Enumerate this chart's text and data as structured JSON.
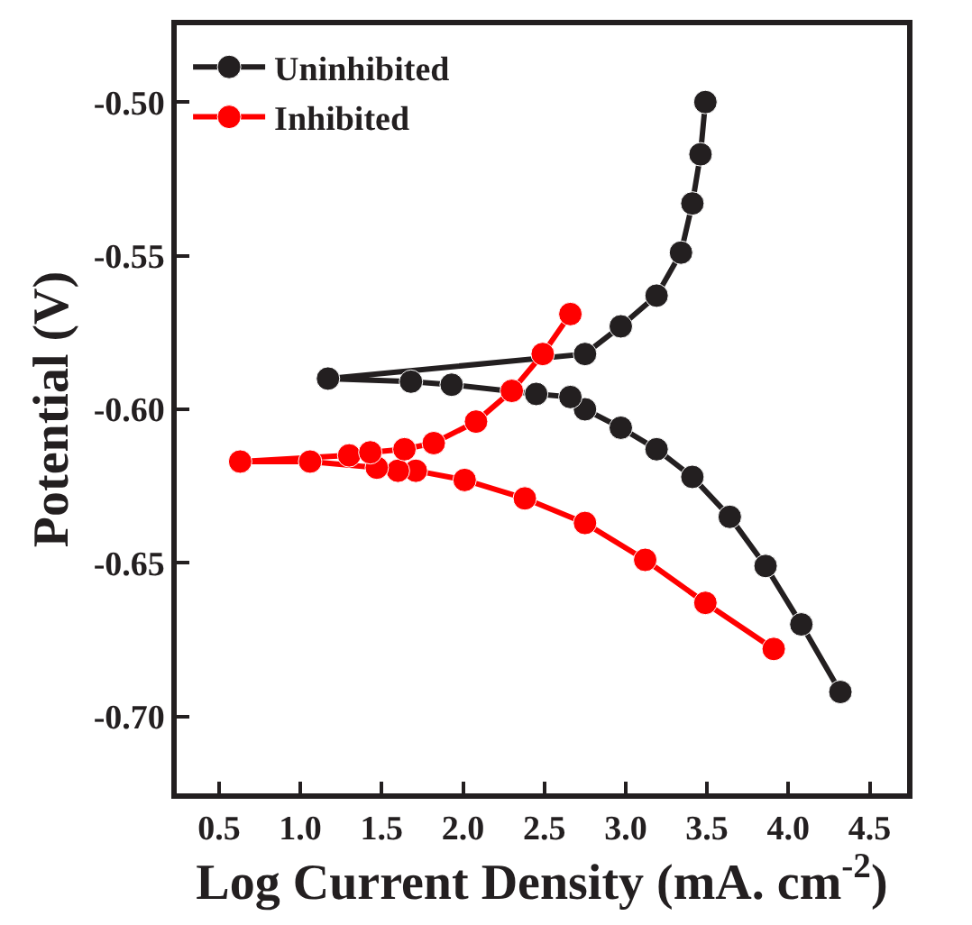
{
  "chart_data": {
    "type": "line",
    "xlabel": "Log Current Density (mA. cm$^{-2}$)",
    "ylabel": "Potential (V)",
    "xlim": [
      0.24,
      4.73
    ],
    "ylim": [
      -0.725,
      -0.475
    ],
    "xticks": [
      0.5,
      {
        "value": 1.0,
        "label": "1.0"
      },
      1.5,
      {
        "value": 2.0,
        "label": "2.0"
      },
      2.5,
      {
        "value": 3.0,
        "label": "3.0"
      },
      3.5,
      {
        "value": 4.0,
        "label": "4.0"
      },
      4.5
    ],
    "yticks": [
      {
        "value": -0.5,
        "label": "-0.50"
      },
      -0.55,
      {
        "value": -0.6,
        "label": "-0.60"
      },
      -0.65,
      {
        "value": -0.7,
        "label": "-0.70"
      }
    ],
    "marker": "circle",
    "line_style": "solid",
    "legend": "top left",
    "series": [
      {
        "name": "Uninhibited",
        "color": "#231f20",
        "x": [
          4.32,
          4.08,
          3.86,
          3.64,
          3.41,
          3.19,
          2.97,
          2.75,
          2.66,
          2.45,
          1.93,
          1.68,
          1.17,
          2.75,
          2.97,
          3.19,
          3.34,
          3.41,
          3.46,
          3.49
        ],
        "values": [
          -0.692,
          -0.67,
          -0.651,
          -0.635,
          -0.622,
          -0.613,
          -0.606,
          -0.6,
          -0.596,
          -0.595,
          -0.592,
          -0.591,
          -0.59,
          -0.582,
          -0.573,
          -0.563,
          -0.549,
          -0.533,
          -0.517,
          -0.5
        ]
      },
      {
        "name": "Inhibited",
        "color": "#ff0000",
        "x": [
          3.91,
          3.49,
          3.12,
          2.75,
          2.38,
          2.01,
          1.71,
          1.6,
          1.47,
          1.06,
          0.63,
          1.3,
          1.43,
          1.64,
          1.82,
          2.08,
          2.3,
          2.49,
          2.66
        ],
        "values": [
          -0.678,
          -0.663,
          -0.649,
          -0.637,
          -0.629,
          -0.623,
          -0.62,
          -0.62,
          -0.619,
          -0.617,
          -0.617,
          -0.615,
          -0.614,
          -0.613,
          -0.611,
          -0.604,
          -0.594,
          -0.582,
          -0.569
        ]
      }
    ]
  }
}
